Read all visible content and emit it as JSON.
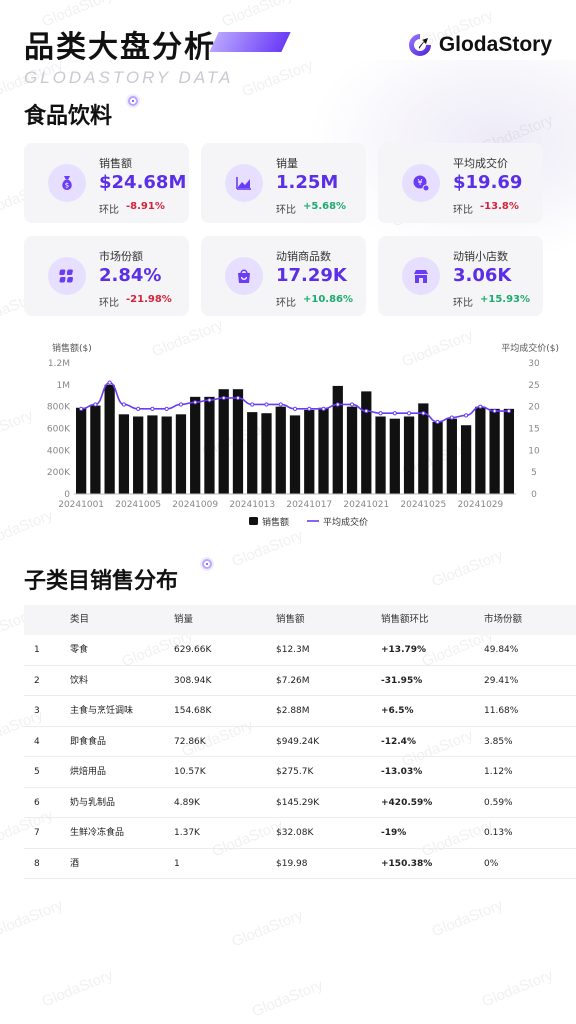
{
  "header": {
    "title": "品类大盘分析",
    "subtitle": "GLODASTORY DATA",
    "logo_text": "GlodaStory"
  },
  "watermark_text": "GlodaStory",
  "section1": {
    "title": "食品饮料"
  },
  "kpis": [
    {
      "icon": "money-bag-icon",
      "label": "销售额",
      "value": "$24.68M",
      "change_label": "环比",
      "change": "-8.91%",
      "trend": "neg"
    },
    {
      "icon": "trend-chart-icon",
      "label": "销量",
      "value": "1.25M",
      "change_label": "环比",
      "change": "+5.68%",
      "trend": "pos"
    },
    {
      "icon": "price-tag-icon",
      "label": "平均成交价",
      "value": "$19.69",
      "change_label": "环比",
      "change": "-13.8%",
      "trend": "neg"
    },
    {
      "icon": "grid-icon",
      "label": "市场份额",
      "value": "2.84%",
      "change_label": "环比",
      "change": "-21.98%",
      "trend": "neg"
    },
    {
      "icon": "shopping-bag-icon",
      "label": "动销商品数",
      "value": "17.29K",
      "change_label": "环比",
      "change": "+10.86%",
      "trend": "pos"
    },
    {
      "icon": "store-icon",
      "label": "动销小店数",
      "value": "3.06K",
      "change_label": "环比",
      "change": "+15.93%",
      "trend": "pos"
    }
  ],
  "chart_data": {
    "type": "bar",
    "ylabel": "销售额($)",
    "y2label": "平均成交价($)",
    "ylim": [
      0,
      1200000
    ],
    "y2lim": [
      0,
      30
    ],
    "yticks": [
      "0",
      "200K",
      "400K",
      "600K",
      "800K",
      "1M",
      "1.2M"
    ],
    "y2ticks": [
      "0",
      "5",
      "10",
      "15",
      "20",
      "25",
      "30"
    ],
    "x_tick_labels": [
      "20241001",
      "20241005",
      "20241009",
      "20241013",
      "20241017",
      "20241021",
      "20241025",
      "20241029"
    ],
    "x_tick_every": 4,
    "x": [
      "20241001",
      "20241002",
      "20241003",
      "20241004",
      "20241005",
      "20241006",
      "20241007",
      "20241008",
      "20241009",
      "20241010",
      "20241011",
      "20241012",
      "20241013",
      "20241014",
      "20241015",
      "20241016",
      "20241017",
      "20241018",
      "20241019",
      "20241020",
      "20241021",
      "20241022",
      "20241023",
      "20241024",
      "20241025",
      "20241026",
      "20241027",
      "20241028",
      "20241029",
      "20241030",
      "20241031"
    ],
    "series": [
      {
        "name": "销售额",
        "type": "bar",
        "color": "#111111",
        "values": [
          790000,
          810000,
          1000000,
          730000,
          710000,
          720000,
          710000,
          730000,
          890000,
          890000,
          960000,
          960000,
          750000,
          740000,
          800000,
          720000,
          770000,
          790000,
          990000,
          800000,
          940000,
          710000,
          690000,
          710000,
          830000,
          660000,
          690000,
          630000,
          800000,
          780000,
          780000
        ]
      },
      {
        "name": "平均成交价",
        "type": "line",
        "color": "#6b3cf6",
        "values": [
          19.5,
          20.5,
          25.5,
          20.5,
          19.5,
          19.5,
          19.5,
          20.5,
          21.0,
          21.5,
          22.0,
          22.0,
          20.5,
          20.5,
          20.5,
          19.5,
          19.5,
          19.5,
          20.5,
          20.5,
          19.0,
          18.5,
          18.5,
          18.5,
          18.5,
          16.5,
          17.5,
          18.0,
          20.0,
          19.0,
          19.0
        ]
      }
    ],
    "legend_position": "bottom"
  },
  "section2": {
    "title": "子类目销售分布"
  },
  "table": {
    "headers": [
      "类目",
      "销量",
      "销售额",
      "销售额环比",
      "市场份额"
    ],
    "rows": [
      {
        "rank": "1",
        "category": "零食",
        "sales_volume": "629.66K",
        "sales": "$12.3M",
        "change": "+13.79%",
        "trend": "pos",
        "share": "49.84%"
      },
      {
        "rank": "2",
        "category": "饮料",
        "sales_volume": "308.94K",
        "sales": "$7.26M",
        "change": "-31.95%",
        "trend": "neg",
        "share": "29.41%"
      },
      {
        "rank": "3",
        "category": "主食与烹饪调味",
        "sales_volume": "154.68K",
        "sales": "$2.88M",
        "change": "+6.5%",
        "trend": "pos",
        "share": "11.68%"
      },
      {
        "rank": "4",
        "category": "即食食品",
        "sales_volume": "72.86K",
        "sales": "$949.24K",
        "change": "-12.4%",
        "trend": "neg",
        "share": "3.85%"
      },
      {
        "rank": "5",
        "category": "烘焙用品",
        "sales_volume": "10.57K",
        "sales": "$275.7K",
        "change": "-13.03%",
        "trend": "neg",
        "share": "1.12%"
      },
      {
        "rank": "6",
        "category": "奶与乳制品",
        "sales_volume": "4.89K",
        "sales": "$145.29K",
        "change": "+420.59%",
        "trend": "pos",
        "share": "0.59%"
      },
      {
        "rank": "7",
        "category": "生鲜冷冻食品",
        "sales_volume": "1.37K",
        "sales": "$32.08K",
        "change": "-19%",
        "trend": "neg",
        "share": "0.13%"
      },
      {
        "rank": "8",
        "category": "酒",
        "sales_volume": "1",
        "sales": "$19.98",
        "change": "+150.38%",
        "trend": "pos",
        "share": "0%"
      }
    ]
  },
  "colors": {
    "accent": "#5b2ee8",
    "positive": "#1eab6f",
    "negative": "#d6233b",
    "card_bg": "#f5f5f7"
  }
}
